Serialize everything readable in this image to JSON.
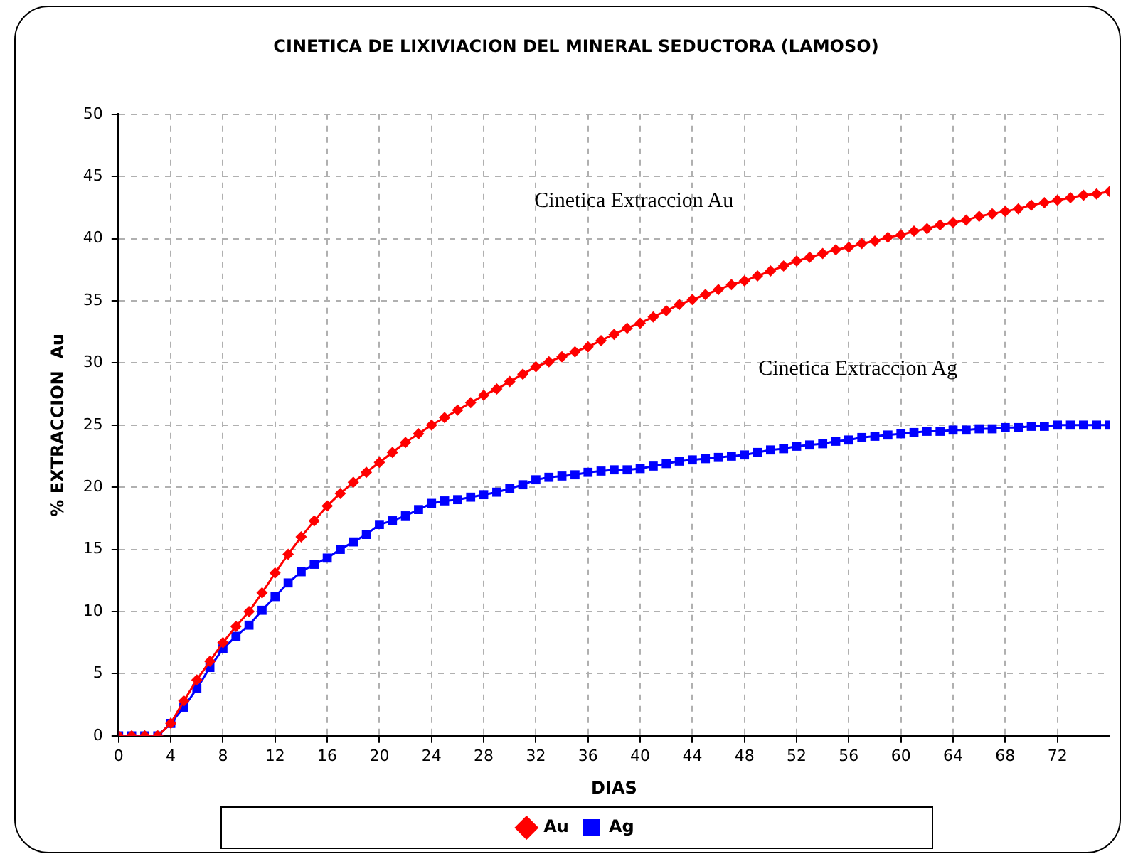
{
  "chart_data": {
    "type": "line",
    "title": "CINETICA DE LIXIVIACION DEL MINERAL SEDUCTORA (LAMOSO)",
    "xlabel": "DIAS",
    "ylabel": "% EXTRACCION  Au",
    "x": [
      0,
      1,
      2,
      3,
      4,
      5,
      6,
      7,
      8,
      9,
      10,
      11,
      12,
      13,
      14,
      15,
      16,
      17,
      18,
      19,
      20,
      21,
      22,
      23,
      24,
      25,
      26,
      27,
      28,
      29,
      30,
      31,
      32,
      33,
      34,
      35,
      36,
      37,
      38,
      39,
      40,
      41,
      42,
      43,
      44,
      45,
      46,
      47,
      48,
      49,
      50,
      51,
      52,
      53,
      54,
      55,
      56,
      57,
      58,
      59,
      60,
      61,
      62,
      63,
      64,
      65,
      66,
      67,
      68,
      69,
      70,
      71,
      72,
      73,
      74,
      75,
      76
    ],
    "series": [
      {
        "name": "Au",
        "color": "#ff0000",
        "marker": "diamond",
        "values": [
          0,
          0,
          0,
          0,
          1.0,
          2.8,
          4.5,
          6.0,
          7.5,
          8.8,
          10.0,
          11.5,
          13.1,
          14.6,
          16.0,
          17.3,
          18.5,
          19.5,
          20.4,
          21.2,
          22.0,
          22.8,
          23.6,
          24.3,
          25.0,
          25.6,
          26.2,
          26.8,
          27.4,
          27.9,
          28.5,
          29.1,
          29.7,
          30.1,
          30.5,
          30.9,
          31.3,
          31.8,
          32.3,
          32.8,
          33.2,
          33.7,
          34.2,
          34.7,
          35.1,
          35.5,
          35.9,
          36.3,
          36.6,
          37.0,
          37.4,
          37.8,
          38.2,
          38.5,
          38.8,
          39.1,
          39.3,
          39.6,
          39.8,
          40.1,
          40.3,
          40.6,
          40.8,
          41.1,
          41.3,
          41.5,
          41.8,
          42.0,
          42.2,
          42.4,
          42.7,
          42.9,
          43.1,
          43.3,
          43.5,
          43.6,
          43.8
        ]
      },
      {
        "name": "Ag",
        "color": "#0000ff",
        "marker": "square",
        "values": [
          0,
          0,
          0,
          0,
          1.0,
          2.3,
          3.8,
          5.5,
          7.0,
          8.0,
          8.9,
          10.1,
          11.2,
          12.3,
          13.2,
          13.8,
          14.3,
          15.0,
          15.6,
          16.2,
          17.0,
          17.3,
          17.7,
          18.2,
          18.7,
          18.9,
          19.0,
          19.2,
          19.4,
          19.6,
          19.9,
          20.2,
          20.6,
          20.8,
          20.9,
          21.0,
          21.2,
          21.3,
          21.4,
          21.4,
          21.5,
          21.7,
          21.9,
          22.1,
          22.2,
          22.3,
          22.4,
          22.5,
          22.6,
          22.8,
          23.0,
          23.1,
          23.3,
          23.4,
          23.5,
          23.7,
          23.8,
          24.0,
          24.1,
          24.2,
          24.3,
          24.4,
          24.5,
          24.5,
          24.6,
          24.6,
          24.7,
          24.7,
          24.8,
          24.8,
          24.9,
          24.9,
          25.0,
          25.0,
          25.0,
          25.0,
          25.0
        ]
      }
    ],
    "xlim": [
      0,
      76
    ],
    "xticks": [
      0,
      4,
      8,
      12,
      16,
      20,
      24,
      28,
      32,
      36,
      40,
      44,
      48,
      52,
      56,
      60,
      64,
      68,
      72
    ],
    "ylim": [
      0,
      50
    ],
    "yticks": [
      0,
      5,
      10,
      15,
      20,
      25,
      30,
      35,
      40,
      45,
      50
    ],
    "grid": true,
    "legend": "bottom",
    "line_style": "solid",
    "annotations": [
      "Cinetica Extraccion Au",
      "Cinetica Extraccion Ag"
    ]
  }
}
